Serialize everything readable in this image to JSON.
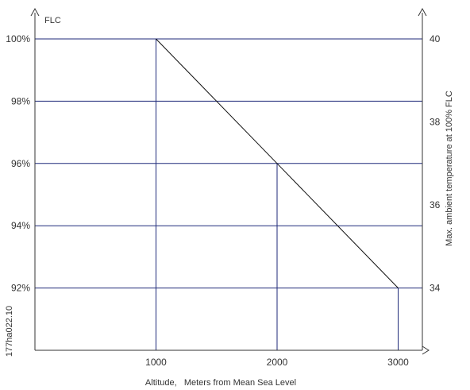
{
  "chart_data": {
    "type": "line",
    "title": "",
    "xlabel": "Altitude,   Meters from Mean Sea Level",
    "ylabel": "FLC",
    "y2label": "Max. ambient temperature at 100% FLC",
    "figure_code": "177ha022.10",
    "x_ticks": [
      "1000",
      "2000",
      "3000"
    ],
    "y_ticks": [
      "100%",
      "98%",
      "96%",
      "94%",
      "92%"
    ],
    "y2_ticks": [
      "40",
      "38",
      "36",
      "34"
    ],
    "x_tick_values": [
      1000,
      2000,
      3000
    ],
    "y_tick_values": [
      100,
      98,
      96,
      94,
      92
    ],
    "y2_tick_values": [
      40,
      38,
      36,
      34
    ],
    "ylim": [
      90,
      100
    ],
    "y2lim": [
      32.5,
      40
    ],
    "xlim": [
      0,
      3200
    ],
    "grid": true,
    "series": [
      {
        "x": [
          1000,
          2000,
          3000
        ],
        "y": [
          100,
          96,
          92
        ]
      }
    ],
    "colors": {
      "grid": "#1f2a7a",
      "line": "#111111",
      "axis": "#333333"
    }
  }
}
